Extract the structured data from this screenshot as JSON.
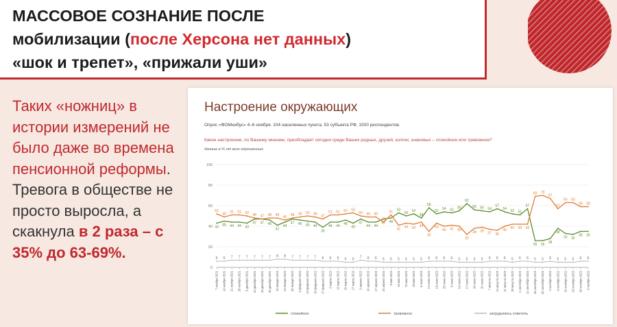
{
  "header": {
    "line1": "МАССОВОЕ СОЗНАНИЕ ПОСЛЕ",
    "line2_pre": "мобилизации (",
    "line2_red": "после Херсона нет данных",
    "line2_post": ")",
    "line3": "«шок и трепет», «прижали уши»"
  },
  "left": {
    "p1": "Таких «ножниц» в истории измерений не было даже во времена пенсионной реформы",
    "p2": ". Тревога в обществе не просто выросла, а скакнула ",
    "p3": "в 2 раза – с 35% до 63-69%."
  },
  "chart": {
    "title": "Настроение окружающих",
    "subtitle": "Опрос «ФОМнибус» 4–6 ноября. 104 населенных пункта, 53 субъекта РФ. 1500 респондентов.",
    "question": "Какое настроение, по Вашему мнению, преобладает сегодня среди Ваших родных, друзей, коллег, знакомых – спокойное или тревожное?",
    "units": "данные в % от всех опрошенных"
  },
  "colors": {
    "calm": "#5a8a2a",
    "anxious": "#e07a2e",
    "unsure": "#b8b8b8",
    "accent": "#c0282d"
  },
  "chart_data": {
    "type": "line",
    "ylim": [
      0,
      100
    ],
    "yticks": [
      0,
      20,
      40,
      60,
      80,
      100
    ],
    "x": [
      "7 ноября 2021",
      "14 ноября 2021",
      "21 ноября 2021",
      "28 ноября 2021",
      "5 декабря 2021",
      "12 декабря 2021",
      "19 декабря 2021",
      "26 декабря 2021",
      "16 января 2022",
      "23 января 2022",
      "30 января 2022",
      "6 февраля 2022",
      "13 февраля 2022",
      "20 февраля 2022",
      "27 февраля 2022",
      "6 марта 2022",
      "13 марта 2022",
      "20 марта 2022",
      "27 марта 2022",
      "3 апреля 2022",
      "10 апреля 2022",
      "17 апреля 2022",
      "24 апреля 2022",
      "8 мая 2022",
      "15 мая 2022",
      "22 мая 2022",
      "29 мая 2022",
      "5 июня 2022",
      "12 июня 2022",
      "19 июня 2022",
      "26 июня 2022",
      "3 июля 2022",
      "10 июля 2022",
      "17 июля 2022",
      "24 июля 2022",
      "31 июля 2022",
      "7 августа 2022",
      "14 августа 2022",
      "21 августа 2022",
      "28 августа 2022",
      "4 сентября 2022",
      "11 сентября 2022",
      "18 сентября 2022",
      "25 сентября 2022",
      "2 октября 2022",
      "9 октября 2022",
      "16 октября 2022",
      "23 октября 2022",
      "30 октября 2022",
      "6 ноября 2022"
    ],
    "series": [
      {
        "name": "спокойное",
        "values": [
          43,
          45,
          44,
          44,
          43,
          47,
          47,
          46,
          41,
          44,
          47,
          46,
          45,
          44,
          39,
          44,
          44,
          46,
          43,
          47,
          44,
          44,
          47,
          48,
          53,
          50,
          52,
          48,
          58,
          52,
          54,
          53,
          55,
          62,
          56,
          55,
          54,
          57,
          54,
          52,
          51,
          57,
          26,
          26,
          28,
          38,
          33,
          32,
          35,
          35
        ]
      },
      {
        "name": "тревожное",
        "values": [
          52,
          49,
          51,
          51,
          50,
          48,
          47,
          48,
          48,
          46,
          48,
          49,
          50,
          49,
          47,
          51,
          51,
          52,
          53,
          50,
          49,
          49,
          44,
          51,
          41,
          43,
          42,
          44,
          35,
          43,
          40,
          41,
          40,
          32,
          38,
          39,
          37,
          36,
          40,
          42,
          42,
          42,
          69,
          70,
          67,
          57,
          63,
          63,
          59,
          59
        ]
      },
      {
        "name": "затрудняюсь ответить",
        "values": [
          6,
          6,
          7,
          7,
          7,
          7,
          7,
          7,
          8,
          8,
          7,
          7,
          7,
          7,
          6,
          6,
          6,
          5,
          5,
          7,
          6,
          6,
          5,
          5,
          5,
          5,
          5,
          5,
          6,
          6,
          6,
          6,
          5,
          5,
          5,
          5,
          6,
          6,
          6,
          5,
          6,
          6,
          5,
          5,
          6,
          5,
          5,
          5,
          6,
          6
        ]
      }
    ]
  }
}
